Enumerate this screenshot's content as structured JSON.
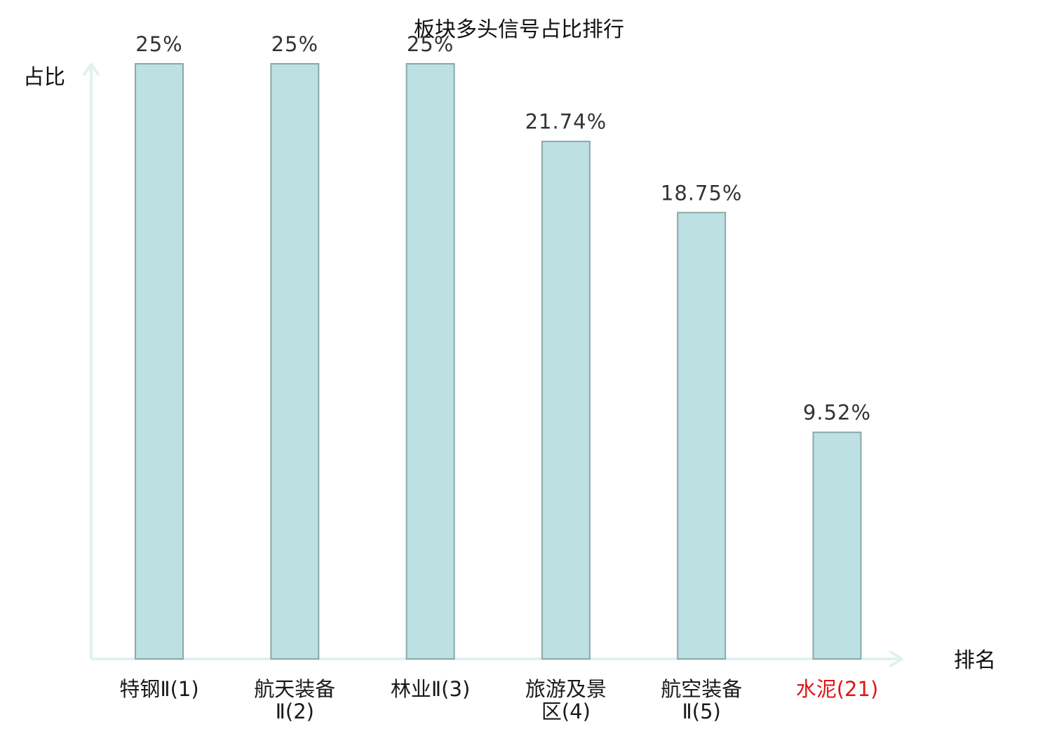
{
  "chart_data": {
    "type": "bar",
    "title": "板块多头信号占比排行",
    "xlabel": "排名",
    "ylabel": "占比",
    "categories": [
      {
        "lines": [
          "特钢Ⅱ(1)"
        ],
        "highlight": false
      },
      {
        "lines": [
          "航天装备",
          "Ⅱ(2)"
        ],
        "highlight": false
      },
      {
        "lines": [
          "林业Ⅱ(3)"
        ],
        "highlight": false
      },
      {
        "lines": [
          "旅游及景",
          "区(4)"
        ],
        "highlight": false
      },
      {
        "lines": [
          "航空装备",
          "Ⅱ(5)"
        ],
        "highlight": false
      },
      {
        "lines": [
          "水泥(21)"
        ],
        "highlight": true
      }
    ],
    "values": [
      25,
      25,
      25,
      21.74,
      18.75,
      9.52
    ],
    "value_labels": [
      "25%",
      "25%",
      "25%",
      "21.74%",
      "18.75%",
      "9.52%"
    ],
    "ylim": [
      0,
      25
    ],
    "grid": false,
    "colors": {
      "bar_fill": "#bde0e3",
      "bar_stroke": "#8aa8a9",
      "axis": "#dff2f0",
      "highlight_label": "#e01515"
    }
  }
}
